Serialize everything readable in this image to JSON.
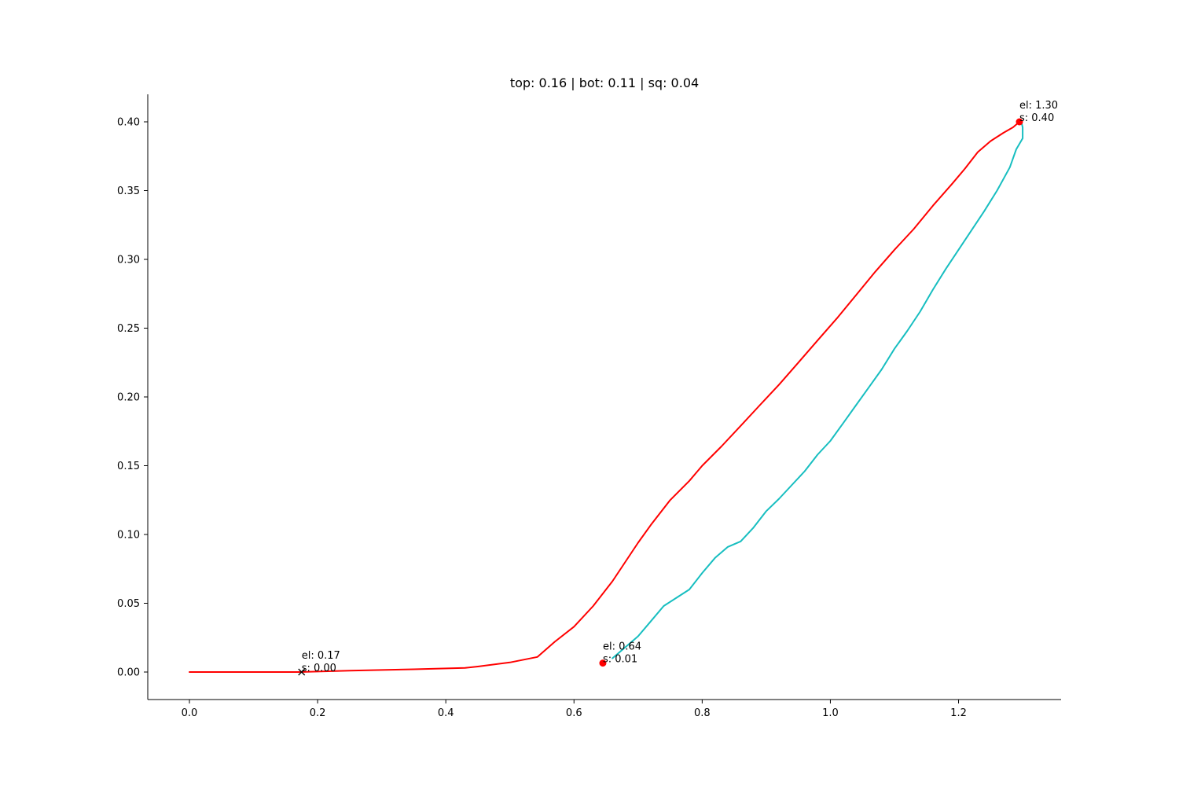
{
  "chart_data": {
    "type": "line",
    "title": "top: 0.16 | bot: 0.11 | sq: 0.04",
    "xlabel": "",
    "ylabel": "",
    "xlim": [
      -0.065,
      1.36
    ],
    "ylim": [
      -0.02,
      0.42
    ],
    "grid": false,
    "xticks": [
      0.0,
      0.2,
      0.4,
      0.6,
      0.8,
      1.0,
      1.2
    ],
    "xtick_labels": [
      "0.0",
      "0.2",
      "0.4",
      "0.6",
      "0.8",
      "1.0",
      "1.2"
    ],
    "yticks": [
      0.0,
      0.05,
      0.1,
      0.15,
      0.2,
      0.25,
      0.3,
      0.35,
      0.4
    ],
    "ytick_labels": [
      "0.00",
      "0.05",
      "0.10",
      "0.15",
      "0.20",
      "0.25",
      "0.30",
      "0.35",
      "0.40"
    ],
    "series": [
      {
        "color": "#ff0000",
        "x": [
          0.0,
          0.1,
          0.17,
          0.25,
          0.35,
          0.43,
          0.45,
          0.5,
          0.543,
          0.57,
          0.6,
          0.63,
          0.66,
          0.68,
          0.7,
          0.72,
          0.75,
          0.78,
          0.8,
          0.83,
          0.86,
          0.89,
          0.92,
          0.95,
          0.98,
          1.01,
          1.04,
          1.07,
          1.1,
          1.13,
          1.16,
          1.19,
          1.21,
          1.23,
          1.25,
          1.27,
          1.285,
          1.295
        ],
        "y": [
          0.0,
          0.0,
          0.0,
          0.001,
          0.002,
          0.003,
          0.004,
          0.007,
          0.011,
          0.022,
          0.033,
          0.048,
          0.066,
          0.08,
          0.094,
          0.107,
          0.125,
          0.139,
          0.15,
          0.164,
          0.179,
          0.194,
          0.209,
          0.225,
          0.241,
          0.257,
          0.274,
          0.291,
          0.307,
          0.322,
          0.339,
          0.355,
          0.366,
          0.378,
          0.386,
          0.392,
          0.396,
          0.4
        ]
      },
      {
        "color": "#17bec0",
        "x": [
          0.66,
          0.68,
          0.7,
          0.72,
          0.74,
          0.76,
          0.78,
          0.8,
          0.82,
          0.84,
          0.86,
          0.88,
          0.9,
          0.92,
          0.94,
          0.96,
          0.98,
          1.0,
          1.02,
          1.04,
          1.06,
          1.08,
          1.1,
          1.12,
          1.14,
          1.16,
          1.18,
          1.2,
          1.22,
          1.24,
          1.26,
          1.28,
          1.29,
          1.3,
          1.3,
          1.298
        ],
        "y": [
          0.01,
          0.018,
          0.026,
          0.037,
          0.048,
          0.054,
          0.06,
          0.072,
          0.083,
          0.091,
          0.095,
          0.105,
          0.117,
          0.126,
          0.136,
          0.146,
          0.158,
          0.168,
          0.181,
          0.194,
          0.207,
          0.22,
          0.235,
          0.248,
          0.262,
          0.278,
          0.293,
          0.307,
          0.321,
          0.335,
          0.35,
          0.367,
          0.38,
          0.388,
          0.396,
          0.4
        ]
      }
    ],
    "markers": [
      {
        "x": 0.175,
        "y": 0.0,
        "shape": "x",
        "color": "#000000"
      },
      {
        "x": 0.645,
        "y": 0.0065,
        "shape": "dot",
        "color": "#ff0000"
      },
      {
        "x": 1.295,
        "y": 0.4,
        "shape": "dot",
        "color": "#ff0000"
      }
    ],
    "annotations": [
      {
        "x": 0.175,
        "y": 0.0,
        "lines": [
          "el: 0.17",
          "s: 0.00"
        ]
      },
      {
        "x": 0.645,
        "y": 0.0065,
        "lines": [
          "el: 0.64",
          "s: 0.01"
        ]
      },
      {
        "x": 1.295,
        "y": 0.4,
        "lines": [
          "el: 1.30",
          "s: 0.40"
        ]
      }
    ]
  }
}
